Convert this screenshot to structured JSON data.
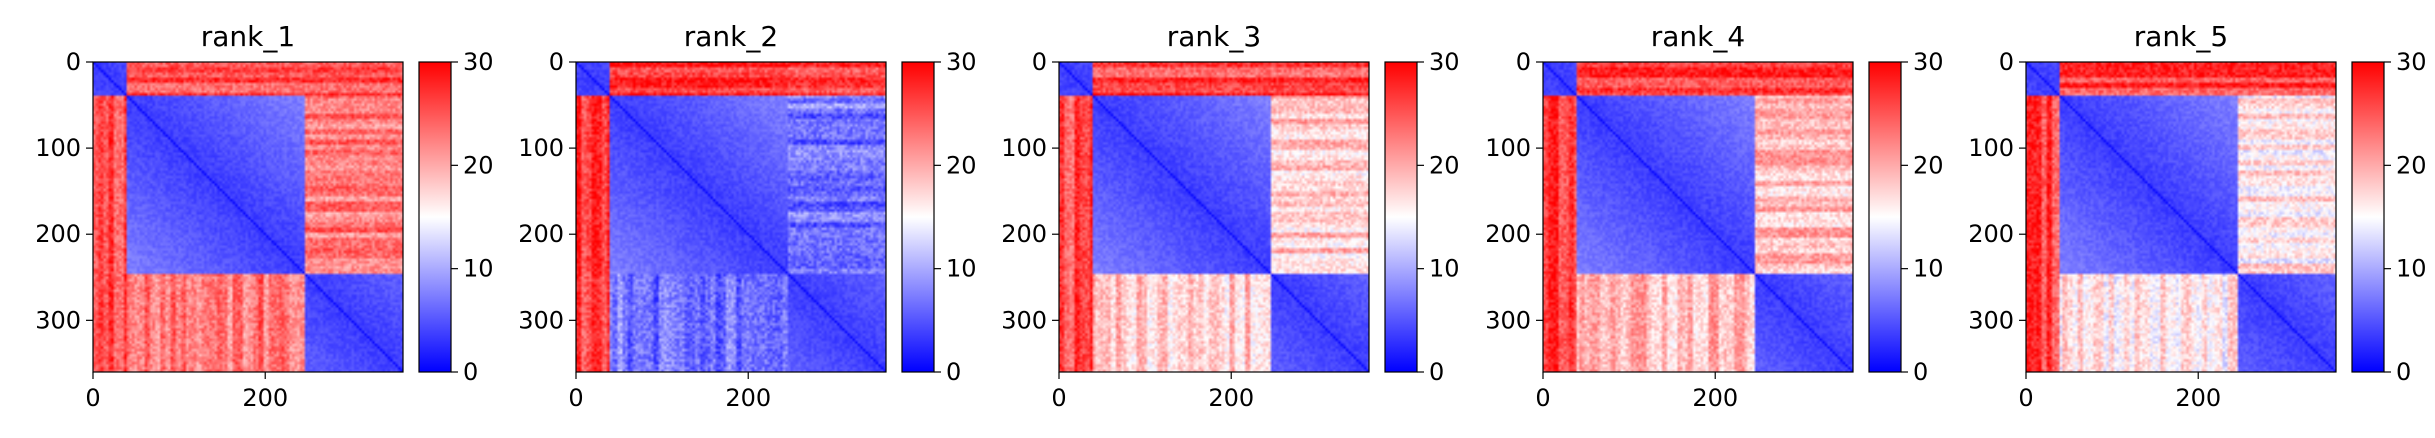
{
  "chart_data": [
    {
      "type": "heatmap",
      "title": "rank_1",
      "matrix_size": 360,
      "xlim": [
        0,
        360
      ],
      "ylim": [
        360,
        0
      ],
      "xticks": [
        0,
        200
      ],
      "yticks": [
        0,
        100,
        200,
        300
      ],
      "colorbar": {
        "vmin": 0,
        "vmax": 30,
        "ticks": [
          0,
          10,
          20,
          30
        ],
        "colormap": "bwr",
        "low_color": "#0000ff",
        "mid_color": "#ffffff",
        "high_color": "#ff0000"
      },
      "domains": [
        [
          0,
          40
        ],
        [
          40,
          245
        ],
        [
          245,
          360
        ]
      ],
      "cross_block_means": {
        "d1_d2": 26,
        "d1_d3": 26,
        "d2_d3": 23
      },
      "within_domain_mean": 3.5
    },
    {
      "type": "heatmap",
      "title": "rank_2",
      "matrix_size": 360,
      "xlim": [
        0,
        360
      ],
      "ylim": [
        360,
        0
      ],
      "xticks": [
        0,
        200
      ],
      "yticks": [
        0,
        100,
        200,
        300
      ],
      "colorbar": {
        "vmin": 0,
        "vmax": 30,
        "ticks": [
          0,
          10,
          20,
          30
        ],
        "colormap": "bwr",
        "low_color": "#0000ff",
        "mid_color": "#ffffff",
        "high_color": "#ff0000"
      },
      "domains": [
        [
          0,
          40
        ],
        [
          40,
          245
        ],
        [
          245,
          360
        ]
      ],
      "cross_block_means": {
        "d1_d2": 27,
        "d1_d3": 26,
        "d2_d3": 7
      },
      "within_domain_mean": 3.5
    },
    {
      "type": "heatmap",
      "title": "rank_3",
      "matrix_size": 360,
      "xlim": [
        0,
        360
      ],
      "ylim": [
        360,
        0
      ],
      "xticks": [
        0,
        200
      ],
      "yticks": [
        0,
        100,
        200,
        300
      ],
      "colorbar": {
        "vmin": 0,
        "vmax": 30,
        "ticks": [
          0,
          10,
          20,
          30
        ],
        "colormap": "bwr",
        "low_color": "#0000ff",
        "mid_color": "#ffffff",
        "high_color": "#ff0000"
      },
      "domains": [
        [
          0,
          40
        ],
        [
          40,
          245
        ],
        [
          245,
          360
        ]
      ],
      "cross_block_means": {
        "d1_d2": 26,
        "d1_d3": 26,
        "d2_d3": 18
      },
      "within_domain_mean": 3.5
    },
    {
      "type": "heatmap",
      "title": "rank_4",
      "matrix_size": 360,
      "xlim": [
        0,
        360
      ],
      "ylim": [
        360,
        0
      ],
      "xticks": [
        0,
        200
      ],
      "yticks": [
        0,
        100,
        200,
        300
      ],
      "colorbar": {
        "vmin": 0,
        "vmax": 30,
        "ticks": [
          0,
          10,
          20,
          30
        ],
        "colormap": "bwr",
        "low_color": "#0000ff",
        "mid_color": "#ffffff",
        "high_color": "#ff0000"
      },
      "domains": [
        [
          0,
          40
        ],
        [
          40,
          245
        ],
        [
          245,
          360
        ]
      ],
      "cross_block_means": {
        "d1_d2": 26,
        "d1_d3": 26,
        "d2_d3": 19
      },
      "within_domain_mean": 3.5
    },
    {
      "type": "heatmap",
      "title": "rank_5",
      "matrix_size": 360,
      "xlim": [
        0,
        360
      ],
      "ylim": [
        360,
        0
      ],
      "xticks": [
        0,
        200
      ],
      "yticks": [
        0,
        100,
        200,
        300
      ],
      "colorbar": {
        "vmin": 0,
        "vmax": 30,
        "ticks": [
          0,
          10,
          20,
          30
        ],
        "colormap": "bwr",
        "low_color": "#0000ff",
        "mid_color": "#ffffff",
        "high_color": "#ff0000"
      },
      "domains": [
        [
          0,
          40
        ],
        [
          40,
          245
        ],
        [
          245,
          360
        ]
      ],
      "cross_block_means": {
        "d1_d2": 26,
        "d1_d3": 26,
        "d2_d3": 16
      },
      "within_domain_mean": 3.5
    }
  ]
}
